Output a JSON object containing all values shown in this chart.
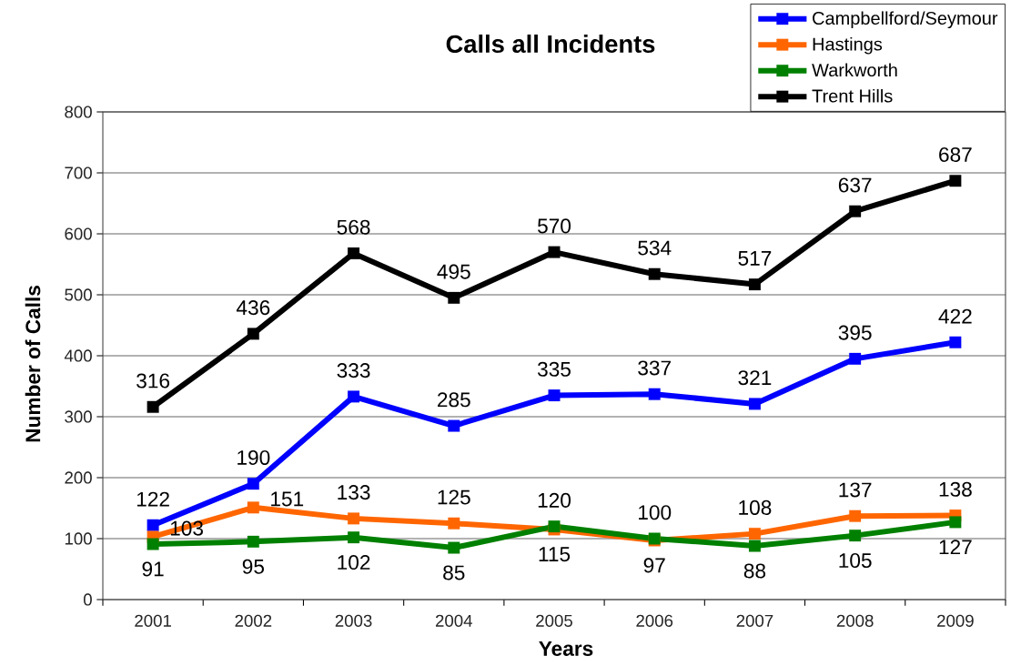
{
  "chart_data": {
    "type": "line",
    "title": "Calls all Incidents",
    "xlabel": "Years",
    "ylabel": "Number of Calls",
    "categories": [
      "2001",
      "2002",
      "2003",
      "2004",
      "2005",
      "2006",
      "2007",
      "2008",
      "2009"
    ],
    "series": [
      {
        "name": "Campbellford/Seymour",
        "color": "#0000ff",
        "values": [
          122,
          190,
          333,
          285,
          335,
          337,
          321,
          395,
          422
        ]
      },
      {
        "name": "Hastings",
        "color": "#ff6600",
        "values": [
          103,
          151,
          133,
          125,
          115,
          97,
          108,
          137,
          138
        ]
      },
      {
        "name": "Warkworth",
        "color": "#008000",
        "values": [
          91,
          95,
          102,
          85,
          120,
          100,
          88,
          105,
          127
        ]
      },
      {
        "name": "Trent Hills",
        "color": "#000000",
        "values": [
          316,
          436,
          568,
          495,
          570,
          534,
          517,
          637,
          687
        ]
      }
    ],
    "ylim": [
      0,
      800
    ],
    "yticks": [
      0,
      100,
      200,
      300,
      400,
      500,
      600,
      700,
      800
    ],
    "grid": "y",
    "legend": "top right",
    "marker": "square",
    "line_style": "solid",
    "data_labels": true
  }
}
